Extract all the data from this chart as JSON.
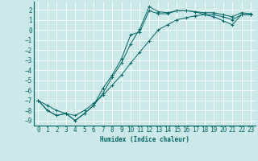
{
  "xlabel": "Humidex (Indice chaleur)",
  "bg_color": "#cce8e8",
  "line_color": "#006666",
  "grid_color": "#ffffff",
  "ylim": [
    -9.5,
    2.8
  ],
  "xlim": [
    -0.5,
    23.5
  ],
  "line1_x": [
    0,
    1,
    2,
    3,
    4,
    5,
    6,
    7,
    8,
    9,
    10,
    11,
    12,
    13,
    14,
    15,
    16,
    17,
    18,
    19,
    20,
    21,
    22,
    23
  ],
  "line1_y": [
    -7.0,
    -8.0,
    -8.5,
    -8.3,
    -9.0,
    -8.3,
    -7.5,
    -6.3,
    -4.7,
    -3.3,
    -1.4,
    0.1,
    2.3,
    1.8,
    1.7,
    1.9,
    1.9,
    1.8,
    1.7,
    1.7,
    1.5,
    1.3,
    1.7,
    1.6
  ],
  "line2_x": [
    0,
    1,
    2,
    3,
    4,
    5,
    6,
    7,
    8,
    9,
    10,
    11,
    12,
    13,
    14,
    15,
    16,
    17,
    18,
    19,
    20,
    21,
    22,
    23
  ],
  "line2_y": [
    -7.0,
    -8.0,
    -8.5,
    -8.3,
    -9.0,
    -8.3,
    -7.5,
    -5.8,
    -4.5,
    -2.9,
    -0.5,
    -0.2,
    1.9,
    1.6,
    1.6,
    1.9,
    1.9,
    1.8,
    1.5,
    1.3,
    0.9,
    0.5,
    1.5,
    1.5
  ],
  "line3_x": [
    0,
    1,
    2,
    3,
    4,
    5,
    6,
    7,
    8,
    9,
    10,
    11,
    12,
    13,
    14,
    15,
    16,
    17,
    18,
    19,
    20,
    21,
    22,
    23
  ],
  "line3_y": [
    -7.0,
    -7.5,
    -8.0,
    -8.3,
    -8.5,
    -8.0,
    -7.3,
    -6.5,
    -5.5,
    -4.5,
    -3.3,
    -2.2,
    -1.1,
    0.0,
    0.5,
    1.0,
    1.2,
    1.4,
    1.5,
    1.5,
    1.3,
    1.0,
    1.5,
    1.5
  ],
  "yticks": [
    2,
    1,
    0,
    -1,
    -2,
    -3,
    -4,
    -5,
    -6,
    -7,
    -8,
    -9
  ],
  "xticks": [
    0,
    1,
    2,
    3,
    4,
    5,
    6,
    7,
    8,
    9,
    10,
    11,
    12,
    13,
    14,
    15,
    16,
    17,
    18,
    19,
    20,
    21,
    22,
    23
  ],
  "font_size": 5.5,
  "marker_size": 2.5,
  "linewidth": 0.7
}
